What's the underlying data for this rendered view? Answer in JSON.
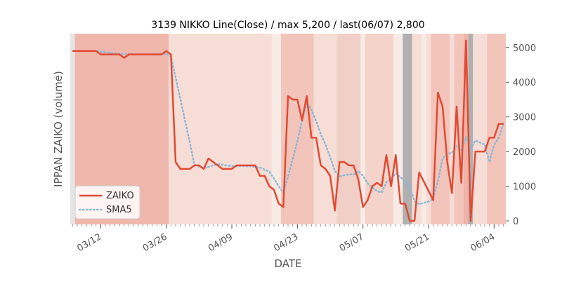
{
  "chart_data": {
    "type": "line",
    "title": "3139 NIKKO Line(Close) / max 5,200 / last(06/07) 2,800",
    "xlabel": "DATE",
    "ylabel": "IPPAN ZAIKO (volume)",
    "ylim": [
      -100,
      5400
    ],
    "yticks": [
      0,
      1000,
      2000,
      3000,
      4000,
      5000
    ],
    "x_start": "03/06",
    "x_end": "06/08",
    "xticks": [
      {
        "label": "03/12",
        "day": 6
      },
      {
        "label": "03/26",
        "day": 20
      },
      {
        "label": "04/09",
        "day": 34
      },
      {
        "label": "04/23",
        "day": 48
      },
      {
        "label": "05/07",
        "day": 62
      },
      {
        "label": "05/21",
        "day": 76
      },
      {
        "label": "06/04",
        "day": 90
      }
    ],
    "xlim_days": [
      -0.5,
      92.5
    ],
    "grid": false,
    "legend_position": "lower-left",
    "series": [
      {
        "name": "ZAIKO",
        "color": "#e24a33",
        "style": "solid",
        "points": [
          [
            0,
            4900
          ],
          [
            5,
            4900
          ],
          [
            6,
            4800
          ],
          [
            10,
            4800
          ],
          [
            11,
            4700
          ],
          [
            12,
            4800
          ],
          [
            19,
            4800
          ],
          [
            20,
            4900
          ],
          [
            21,
            4800
          ],
          [
            22,
            1700
          ],
          [
            23,
            1500
          ],
          [
            25,
            1500
          ],
          [
            26,
            1600
          ],
          [
            27,
            1600
          ],
          [
            28,
            1500
          ],
          [
            29,
            1800
          ],
          [
            30,
            1700
          ],
          [
            31,
            1600
          ],
          [
            32,
            1500
          ],
          [
            34,
            1500
          ],
          [
            35,
            1600
          ],
          [
            39,
            1600
          ],
          [
            40,
            1300
          ],
          [
            41,
            1300
          ],
          [
            42,
            1000
          ],
          [
            43,
            900
          ],
          [
            44,
            500
          ],
          [
            45,
            400
          ],
          [
            46,
            3600
          ],
          [
            47,
            3500
          ],
          [
            48,
            3500
          ],
          [
            49,
            2900
          ],
          [
            50,
            3600
          ],
          [
            51,
            2400
          ],
          [
            52,
            2400
          ],
          [
            53,
            1600
          ],
          [
            54,
            1500
          ],
          [
            55,
            1300
          ],
          [
            56,
            300
          ],
          [
            57,
            1700
          ],
          [
            58,
            1700
          ],
          [
            59,
            1600
          ],
          [
            60,
            1600
          ],
          [
            61,
            1200
          ],
          [
            62,
            400
          ],
          [
            63,
            600
          ],
          [
            64,
            1000
          ],
          [
            65,
            1100
          ],
          [
            66,
            1000
          ],
          [
            67,
            1900
          ],
          [
            68,
            1000
          ],
          [
            69,
            1900
          ],
          [
            70,
            500
          ],
          [
            71,
            500
          ],
          [
            72,
            0
          ],
          [
            73,
            0
          ],
          [
            74,
            1400
          ],
          [
            77,
            600
          ],
          [
            78,
            3700
          ],
          [
            79,
            3300
          ],
          [
            80,
            1700
          ],
          [
            81,
            800
          ],
          [
            82,
            3300
          ],
          [
            83,
            1100
          ],
          [
            84,
            5200
          ],
          [
            85,
            0
          ],
          [
            86,
            2000
          ],
          [
            88,
            2000
          ],
          [
            89,
            2400
          ],
          [
            90,
            2400
          ],
          [
            91,
            2800
          ],
          [
            92,
            2800
          ]
        ]
      },
      {
        "name": "SMA5",
        "color": "#8eb7d6",
        "style": "dotted",
        "points": [
          [
            0,
            4900
          ],
          [
            5,
            4900
          ],
          [
            6,
            4880
          ],
          [
            10,
            4820
          ],
          [
            15,
            4800
          ],
          [
            20,
            4820
          ],
          [
            21,
            4740
          ],
          [
            22,
            4140
          ],
          [
            23,
            3520
          ],
          [
            24,
            2900
          ],
          [
            25,
            2280
          ],
          [
            26,
            1620
          ],
          [
            28,
            1520
          ],
          [
            31,
            1640
          ],
          [
            34,
            1580
          ],
          [
            38,
            1580
          ],
          [
            40,
            1540
          ],
          [
            42,
            1420
          ],
          [
            43,
            1220
          ],
          [
            44,
            1000
          ],
          [
            45,
            820
          ],
          [
            46,
            1280
          ],
          [
            47,
            1780
          ],
          [
            48,
            2300
          ],
          [
            49,
            2900
          ],
          [
            50,
            3420
          ],
          [
            51,
            3200
          ],
          [
            52,
            2880
          ],
          [
            53,
            2500
          ],
          [
            54,
            2200
          ],
          [
            55,
            1840
          ],
          [
            56,
            1440
          ],
          [
            57,
            1280
          ],
          [
            58,
            1320
          ],
          [
            59,
            1340
          ],
          [
            60,
            1340
          ],
          [
            61,
            1440
          ],
          [
            62,
            1300
          ],
          [
            63,
            1080
          ],
          [
            64,
            960
          ],
          [
            65,
            860
          ],
          [
            66,
            820
          ],
          [
            67,
            1120
          ],
          [
            68,
            1200
          ],
          [
            69,
            1380
          ],
          [
            70,
            1260
          ],
          [
            71,
            1160
          ],
          [
            72,
            980
          ],
          [
            73,
            580
          ],
          [
            74,
            480
          ],
          [
            76,
            560
          ],
          [
            77,
            640
          ],
          [
            78,
            1140
          ],
          [
            79,
            1800
          ],
          [
            80,
            1940
          ],
          [
            81,
            1960
          ],
          [
            82,
            2160
          ],
          [
            83,
            2040
          ],
          [
            84,
            2420
          ],
          [
            85,
            2060
          ],
          [
            86,
            2320
          ],
          [
            87,
            2260
          ],
          [
            88,
            2200
          ],
          [
            89,
            1700
          ],
          [
            90,
            2200
          ],
          [
            91,
            2400
          ],
          [
            92,
            2800
          ]
        ]
      }
    ],
    "bands": [
      {
        "from": -0.5,
        "to": 0.5,
        "color": "#e5e5e5"
      },
      {
        "from": 0.5,
        "to": 20.5,
        "color": "#f0b7ad"
      },
      {
        "from": 20.5,
        "to": 42.5,
        "color": "#f6ddd6"
      },
      {
        "from": 42.5,
        "to": 44.5,
        "color": "#f8ebe6"
      },
      {
        "from": 44.5,
        "to": 51.5,
        "color": "#f2c4ba"
      },
      {
        "from": 51.5,
        "to": 56.5,
        "color": "#f6ddd6"
      },
      {
        "from": 56.5,
        "to": 61.5,
        "color": "#f2cfc6"
      },
      {
        "from": 61.5,
        "to": 62.5,
        "color": "#f8ebe6"
      },
      {
        "from": 62.5,
        "to": 68.5,
        "color": "#f4d3ca"
      },
      {
        "from": 68.5,
        "to": 70.5,
        "color": "#f8ebe6"
      },
      {
        "from": 70.5,
        "to": 72.5,
        "color": "#b0b0b0"
      },
      {
        "from": 72.5,
        "to": 74.5,
        "color": "#f6ddd6"
      },
      {
        "from": 74.5,
        "to": 75.5,
        "color": "#f8ebe6"
      },
      {
        "from": 75.5,
        "to": 76.5,
        "color": "#f6ddd6"
      },
      {
        "from": 76.5,
        "to": 80.5,
        "color": "#f2c4ba"
      },
      {
        "from": 80.5,
        "to": 81.5,
        "color": "#f6ddd6"
      },
      {
        "from": 81.5,
        "to": 83.5,
        "color": "#f2c4ba"
      },
      {
        "from": 83.5,
        "to": 84.5,
        "color": "#efb3a8"
      },
      {
        "from": 84.5,
        "to": 85.5,
        "color": "#b0b0b0"
      },
      {
        "from": 85.5,
        "to": 88.5,
        "color": "#f6ddd6"
      },
      {
        "from": 88.5,
        "to": 92.5,
        "color": "#f2c4ba"
      }
    ],
    "colors": {
      "background": "#e5e5e5",
      "zaiko": "#e24a33",
      "sma5": "#8eb7d6"
    }
  }
}
